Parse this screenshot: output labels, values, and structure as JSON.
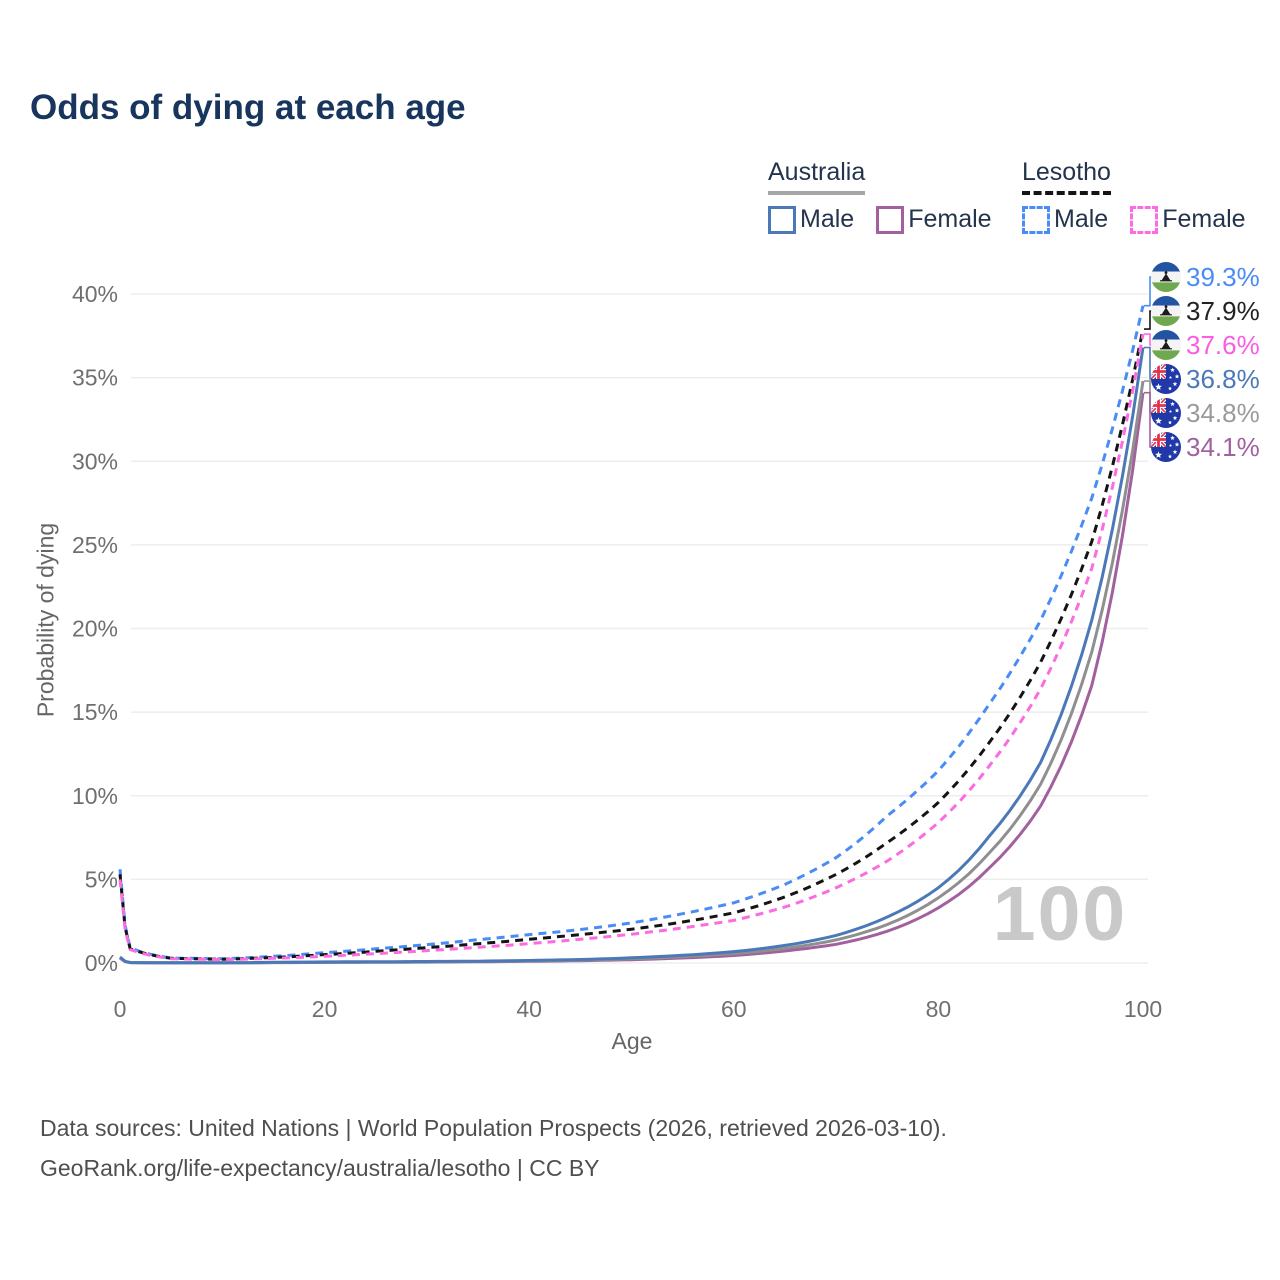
{
  "title": "Odds of dying at each age",
  "legend": {
    "groups": [
      {
        "country": "Australia",
        "style": "solid",
        "underline_color": "#a6a6a6",
        "items": [
          {
            "label": "Male",
            "color": "#4b79b7"
          },
          {
            "label": "Female",
            "color": "#a2609e"
          }
        ]
      },
      {
        "country": "Lesotho",
        "style": "dashed",
        "underline_color": "#141414",
        "items": [
          {
            "label": "Male",
            "color": "#4a8cf5"
          },
          {
            "label": "Female",
            "color": "#fb6ce0"
          }
        ]
      }
    ]
  },
  "chart_data": {
    "type": "line",
    "title": "Odds of dying at each age",
    "xlabel": "Age",
    "ylabel": "Probability of dying",
    "watermark": "100",
    "xlim": [
      0,
      100
    ],
    "ylim": [
      0,
      42
    ],
    "xticks": [
      0,
      20,
      40,
      60,
      80,
      100
    ],
    "yticks": [
      0,
      5,
      10,
      15,
      20,
      25,
      30,
      35,
      40
    ],
    "ytick_labels": [
      "0%",
      "5%",
      "10%",
      "15%",
      "20%",
      "25%",
      "30%",
      "35%",
      "40%"
    ],
    "grid": true,
    "legend_position": "top-right",
    "x": [
      0,
      1,
      5,
      10,
      15,
      20,
      25,
      30,
      35,
      40,
      45,
      50,
      55,
      60,
      65,
      70,
      75,
      80,
      85,
      90,
      95,
      100
    ],
    "series": [
      {
        "name": "Lesotho Male",
        "country": "Lesotho",
        "sex": "Male",
        "color": "#4a8cf5",
        "dash": true,
        "flag": "lesotho",
        "end_label": "39.3%",
        "end_value": 39.3,
        "values": [
          5.6,
          0.9,
          0.3,
          0.25,
          0.4,
          0.62,
          0.85,
          1.1,
          1.4,
          1.7,
          2.0,
          2.4,
          2.95,
          3.6,
          4.7,
          6.3,
          8.8,
          11.5,
          15.5,
          20.5,
          27.8,
          39.3
        ]
      },
      {
        "name": "Lesotho Both sexes",
        "country": "Lesotho",
        "sex": "Both",
        "color": "#141414",
        "dash": true,
        "flag": "lesotho",
        "end_label": "37.9%",
        "end_value": 37.9,
        "values": [
          5.3,
          0.85,
          0.28,
          0.22,
          0.33,
          0.5,
          0.7,
          0.92,
          1.15,
          1.42,
          1.7,
          2.02,
          2.45,
          3.0,
          3.95,
          5.3,
          7.2,
          9.6,
          13.2,
          18.0,
          25.2,
          37.9
        ]
      },
      {
        "name": "Lesotho Female",
        "country": "Lesotho",
        "sex": "Female",
        "color": "#fb6ce0",
        "dash": true,
        "flag": "lesotho",
        "end_label": "37.6%",
        "end_value": 37.6,
        "values": [
          5.0,
          0.8,
          0.26,
          0.2,
          0.28,
          0.4,
          0.56,
          0.74,
          0.94,
          1.16,
          1.42,
          1.72,
          2.1,
          2.55,
          3.35,
          4.5,
          6.1,
          8.4,
          11.8,
          16.4,
          23.6,
          37.6
        ]
      },
      {
        "name": "Australia Male",
        "country": "Australia",
        "sex": "Male",
        "color": "#4b79b7",
        "dash": false,
        "flag": "australia",
        "end_label": "36.8%",
        "end_value": 36.8,
        "values": [
          0.36,
          0.03,
          0.01,
          0.011,
          0.045,
          0.065,
          0.075,
          0.09,
          0.11,
          0.15,
          0.21,
          0.31,
          0.46,
          0.68,
          1.05,
          1.65,
          2.75,
          4.5,
          7.6,
          12.0,
          20.5,
          36.8
        ]
      },
      {
        "name": "Australia Both sexes",
        "country": "Australia",
        "sex": "Both",
        "color": "#8f8f8f",
        "dash": false,
        "flag": "australia",
        "end_label": "34.8%",
        "end_value": 34.8,
        "values": [
          0.32,
          0.026,
          0.009,
          0.009,
          0.032,
          0.048,
          0.058,
          0.07,
          0.09,
          0.12,
          0.17,
          0.25,
          0.38,
          0.56,
          0.87,
          1.38,
          2.3,
          3.9,
          6.6,
          10.7,
          18.6,
          34.8
        ]
      },
      {
        "name": "Australia Female",
        "country": "Australia",
        "sex": "Female",
        "color": "#a2609e",
        "dash": false,
        "flag": "australia",
        "end_label": "34.1%",
        "end_value": 34.1,
        "values": [
          0.29,
          0.022,
          0.008,
          0.008,
          0.022,
          0.032,
          0.042,
          0.055,
          0.075,
          0.1,
          0.14,
          0.2,
          0.3,
          0.45,
          0.72,
          1.12,
          1.9,
          3.3,
          5.7,
          9.4,
          16.6,
          34.1
        ]
      }
    ],
    "end_label_colors": {
      "lesotho_male": "#4a8cf5",
      "lesotho_both": "#222222",
      "lesotho_female": "#fb5ce4",
      "australia_male": "#4b79b7",
      "australia_both": "#9a9a9a",
      "australia_female": "#a2609e"
    },
    "flag_colors": {
      "lesotho_blue": "#2353a3",
      "lesotho_white": "#f4f4f4",
      "lesotho_green": "#6fa84f",
      "lesotho_hat": "#1c1c1c",
      "australia_blue": "#2038a8",
      "australia_red": "#e0334c",
      "australia_white": "#ffffff"
    },
    "grid_color": "#ededed",
    "tick_color": "#6f6f6f"
  },
  "footer": {
    "line1": "Data sources: United Nations | World Population Prospects (2026, retrieved 2026-03-10).",
    "line2": "GeoRank.org/life-expectancy/australia/lesotho | CC BY"
  }
}
